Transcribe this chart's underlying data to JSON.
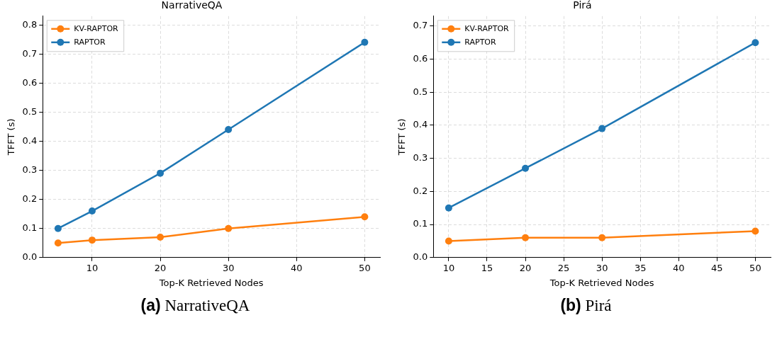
{
  "chart_data": [
    {
      "type": "line",
      "title": "NarrativeQA",
      "xlabel": "Top-K Retrieved Nodes",
      "ylabel": "TFFT (s)",
      "x": [
        5,
        10,
        20,
        30,
        50
      ],
      "series": [
        {
          "name": "KV-RAPTOR",
          "color": "#ff7f0e",
          "values": [
            0.05,
            0.06,
            0.07,
            0.1,
            0.14
          ]
        },
        {
          "name": "RAPTOR",
          "color": "#1f77b4",
          "values": [
            0.1,
            0.16,
            0.29,
            0.44,
            0.74
          ]
        }
      ],
      "xlim": [
        2.75,
        52.25
      ],
      "xticks": [
        10,
        20,
        30,
        40,
        50
      ],
      "ylim": [
        0,
        0.83
      ],
      "yticks": [
        {
          "value": 0,
          "label": "0.0"
        },
        {
          "value": 0.1,
          "label": "0.1"
        },
        {
          "value": 0.2,
          "label": "0.2"
        },
        {
          "value": 0.3,
          "label": "0.3"
        },
        {
          "value": 0.4,
          "label": "0.4"
        },
        {
          "value": 0.5,
          "label": "0.5"
        },
        {
          "value": 0.6,
          "label": "0.6"
        },
        {
          "value": 0.7,
          "label": "0.7"
        },
        {
          "value": 0.8,
          "label": "0.8"
        }
      ],
      "grid": true,
      "legend": "top left",
      "marker": "circle",
      "line_style": "solid",
      "annotations": [
        "(a) NarrativeQA"
      ]
    },
    {
      "type": "line",
      "title": "Pirá",
      "xlabel": "Top-K Retrieved Nodes",
      "ylabel": "TFFT (s)",
      "x": [
        10,
        20,
        30,
        50
      ],
      "series": [
        {
          "name": "KV-RAPTOR",
          "color": "#ff7f0e",
          "values": [
            0.05,
            0.06,
            0.06,
            0.08
          ]
        },
        {
          "name": "RAPTOR",
          "color": "#1f77b4",
          "values": [
            0.15,
            0.27,
            0.39,
            0.65
          ]
        }
      ],
      "xlim": [
        8,
        52
      ],
      "xticks": [
        10,
        15,
        20,
        25,
        30,
        35,
        40,
        45,
        50
      ],
      "ylim": [
        0,
        0.73
      ],
      "yticks": [
        {
          "value": 0,
          "label": "0.0"
        },
        {
          "value": 0.1,
          "label": "0.1"
        },
        {
          "value": 0.2,
          "label": "0.2"
        },
        {
          "value": 0.3,
          "label": "0.3"
        },
        {
          "value": 0.4,
          "label": "0.4"
        },
        {
          "value": 0.5,
          "label": "0.5"
        },
        {
          "value": 0.6,
          "label": "0.6"
        },
        {
          "value": 0.7,
          "label": "0.7"
        }
      ],
      "grid": true,
      "legend": "top left",
      "marker": "circle",
      "line_style": "solid",
      "annotations": [
        "(b) Pirá"
      ]
    }
  ]
}
